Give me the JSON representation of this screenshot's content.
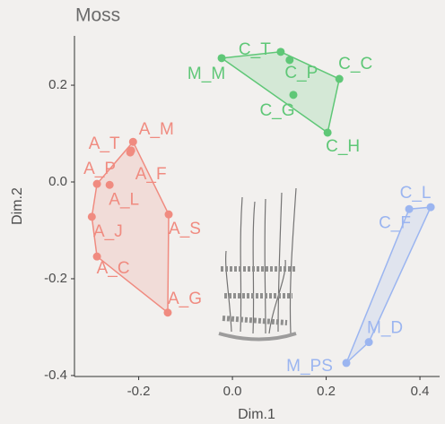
{
  "chart_data": {
    "type": "scatter",
    "title": "Moss",
    "x_label": "Dim.1",
    "y_label": "Dim.2",
    "xlim": [
      -0.337,
      0.442
    ],
    "ylim": [
      -0.402,
      0.302
    ],
    "xticks": [
      -0.2,
      {
        "value": 0,
        "label": "0.0"
      },
      0.2,
      0.4
    ],
    "yticks": [
      -0.4,
      -0.2,
      {
        "value": 0,
        "label": "0.0"
      },
      0.2
    ],
    "series": [
      {
        "color": "#5fc777",
        "labels": [
          "M_M",
          "C_T",
          "C_P",
          "C_C",
          "C_G",
          "C_H"
        ],
        "x": [
          -0.023,
          0.103,
          0.122,
          0.228,
          0.13,
          0.203
        ],
        "y": [
          0.256,
          0.269,
          0.252,
          0.213,
          0.18,
          0.102
        ]
      },
      {
        "color": "#f08b80",
        "labels": [
          "A_M",
          "A_T",
          "A_F",
          "A_P",
          "A_L",
          "A_J",
          "A_C",
          "A_S",
          "A_G"
        ],
        "x": [
          -0.212,
          -0.216,
          -0.218,
          -0.289,
          -0.262,
          -0.3,
          -0.289,
          -0.136,
          -0.138
        ],
        "y": [
          0.083,
          0.065,
          0.061,
          -0.004,
          -0.006,
          -0.072,
          -0.154,
          -0.067,
          -0.27
        ]
      },
      {
        "color": "#9bb5f0",
        "labels": [
          "C_L",
          "C_F",
          "M_D",
          "M_PS"
        ],
        "x": [
          0.423,
          0.377,
          0.291,
          0.243
        ],
        "y": [
          -0.052,
          -0.056,
          -0.331,
          -0.374
        ]
      }
    ]
  }
}
